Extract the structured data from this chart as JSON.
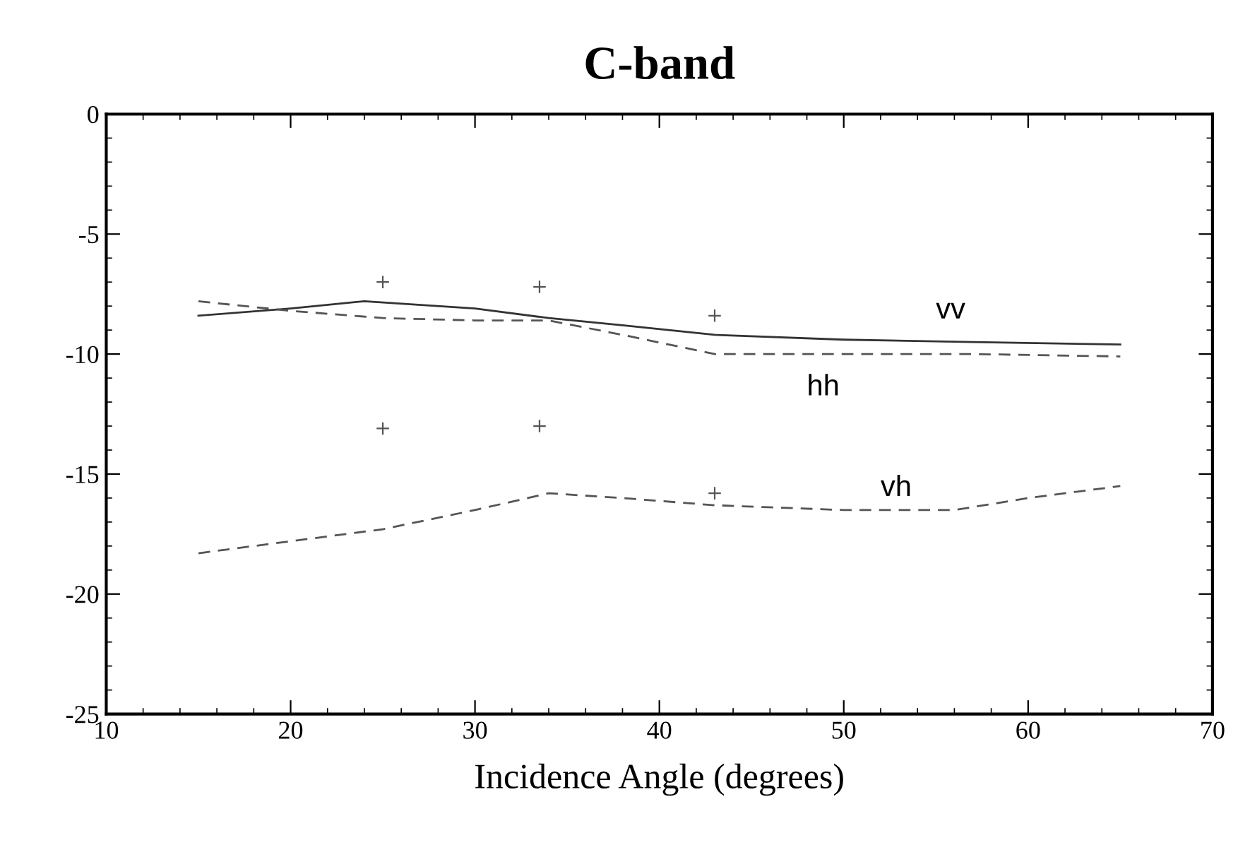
{
  "chart_data": {
    "type": "line",
    "title": "C-band",
    "xlabel": "Incidence Angle (degrees)",
    "xlim": [
      10,
      70
    ],
    "xticks": [
      10,
      20,
      30,
      40,
      50,
      60,
      70
    ],
    "ylim": [
      -25,
      0
    ],
    "yticks": [
      -25,
      -20,
      -15,
      -10,
      -5,
      0
    ],
    "grid": false,
    "marker": "none",
    "series": [
      {
        "name": "vv",
        "color": "#333333",
        "line_style": "solid",
        "x": [
          15,
          20,
          24,
          30,
          34,
          38,
          43,
          50,
          57,
          65
        ],
        "values": [
          -8.4,
          -8.1,
          -7.8,
          -8.1,
          -8.5,
          -8.8,
          -9.2,
          -9.4,
          -9.5,
          -9.6
        ]
      },
      {
        "name": "hh",
        "color": "#555555",
        "line_style": "dashed",
        "x": [
          15,
          20,
          25,
          30,
          34,
          38,
          43,
          50,
          57,
          65
        ],
        "values": [
          -7.8,
          -8.2,
          -8.5,
          -8.6,
          -8.6,
          -9.2,
          -10.0,
          -10.0,
          -10.0,
          -10.1
        ]
      },
      {
        "name": "vh",
        "color": "#555555",
        "line_style": "dashed",
        "x": [
          15,
          20,
          25,
          30,
          34,
          38,
          43,
          50,
          56,
          60,
          65
        ],
        "values": [
          -18.3,
          -17.8,
          -17.3,
          -16.5,
          -15.8,
          -16.0,
          -16.3,
          -16.5,
          -16.5,
          -16.0,
          -15.5
        ]
      },
      {
        "type": "scatter",
        "color": "#555555",
        "marker": "cross",
        "x": [
          25,
          33.5,
          43
        ],
        "values": [
          -7.0,
          -7.2,
          -8.4
        ]
      },
      {
        "type": "scatter",
        "color": "#555555",
        "marker": "cross",
        "x": [
          25,
          33.5,
          43
        ],
        "values": [
          -13.1,
          -13.0,
          -15.8
        ]
      }
    ]
  }
}
